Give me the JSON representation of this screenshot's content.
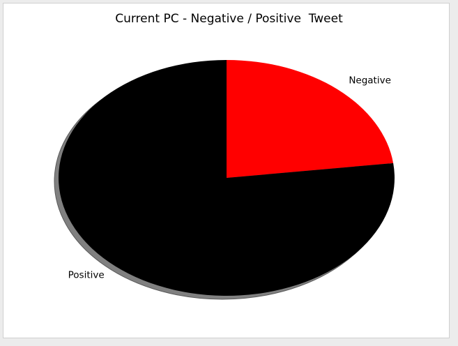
{
  "chart_data": {
    "type": "pie",
    "title": "Current PC - Negative / Positive  Tweet",
    "slices": [
      {
        "label": "Negative",
        "value": 23,
        "color": "#ff0000"
      },
      {
        "label": "Positive",
        "value": 77,
        "color": "#000000"
      }
    ],
    "start_angle_deg": 90,
    "direction": "clockwise",
    "shadow": true,
    "shadow_color": "#808080"
  }
}
